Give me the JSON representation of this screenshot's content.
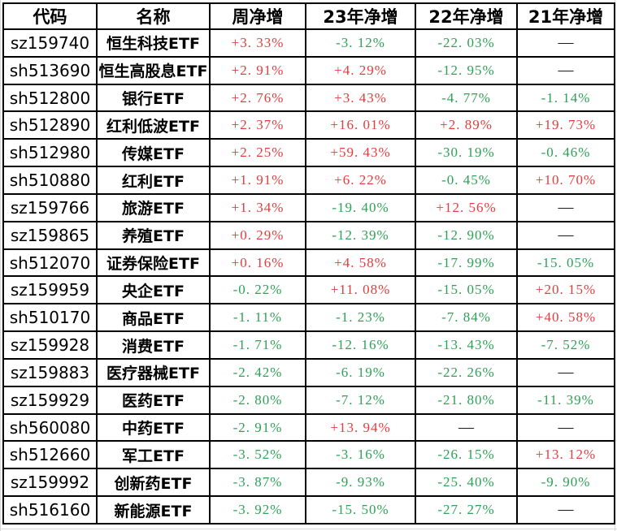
{
  "table": {
    "columns": [
      {
        "key": "code",
        "label": "代码",
        "kind": "text"
      },
      {
        "key": "name",
        "label": "名称",
        "kind": "text"
      },
      {
        "key": "week",
        "label": "周净增",
        "kind": "value"
      },
      {
        "key": "y23",
        "label": "23年净增",
        "kind": "value"
      },
      {
        "key": "y22",
        "label": "22年净增",
        "kind": "value"
      },
      {
        "key": "y21",
        "label": "21年净增",
        "kind": "value"
      }
    ],
    "rows": [
      {
        "code": "sz159740",
        "name": "恒生科技ETF",
        "week": "+3. 33%",
        "y23": "-3. 12%",
        "y22": "-22. 03%",
        "y21": "—"
      },
      {
        "code": "sh513690",
        "name": "恒生高股息ETF",
        "week": "+2. 91%",
        "y23": "+4. 29%",
        "y22": "-12. 95%",
        "y21": "—"
      },
      {
        "code": "sh512800",
        "name": "银行ETF",
        "week": "+2. 76%",
        "y23": "+3. 43%",
        "y22": "-4. 77%",
        "y21": "-1. 14%"
      },
      {
        "code": "sh512890",
        "name": "红利低波ETF",
        "week": "+2. 37%",
        "y23": "+16. 01%",
        "y22": "+2. 89%",
        "y21": "+19. 73%"
      },
      {
        "code": "sh512980",
        "name": "传媒ETF",
        "week": "+2. 25%",
        "y23": "+59. 43%",
        "y22": "-30. 19%",
        "y21": "-0. 46%"
      },
      {
        "code": "sh510880",
        "name": "红利ETF",
        "week": "+1. 91%",
        "y23": "+6. 22%",
        "y22": "-0. 45%",
        "y21": "+10. 70%"
      },
      {
        "code": "sz159766",
        "name": "旅游ETF",
        "week": "+1. 34%",
        "y23": "-19. 40%",
        "y22": "+12. 56%",
        "y21": "—"
      },
      {
        "code": "sz159865",
        "name": "养殖ETF",
        "week": "+0. 29%",
        "y23": "-12. 39%",
        "y22": "-12. 90%",
        "y21": "—"
      },
      {
        "code": "sh512070",
        "name": "证券保险ETF",
        "week": "+0. 16%",
        "y23": "+4. 58%",
        "y22": "-17. 99%",
        "y21": "-15. 05%"
      },
      {
        "code": "sz159959",
        "name": "央企ETF",
        "week": "-0. 22%",
        "y23": "+11. 08%",
        "y22": "-15. 05%",
        "y21": "+20. 15%"
      },
      {
        "code": "sh510170",
        "name": "商品ETF",
        "week": "-1. 11%",
        "y23": "-1. 23%",
        "y22": "-7. 84%",
        "y21": "+40. 58%"
      },
      {
        "code": "sz159928",
        "name": "消费ETF",
        "week": "-1. 71%",
        "y23": "-12. 16%",
        "y22": "-13. 43%",
        "y21": "-7. 52%"
      },
      {
        "code": "sz159883",
        "name": "医疗器械ETF",
        "week": "-2. 42%",
        "y23": "-6. 19%",
        "y22": "-22. 26%",
        "y21": "—"
      },
      {
        "code": "sz159929",
        "name": "医药ETF",
        "week": "-2. 80%",
        "y23": "-7. 12%",
        "y22": "-21. 80%",
        "y21": "-11. 39%"
      },
      {
        "code": "sh560080",
        "name": "中药ETF",
        "week": "-2. 91%",
        "y23": "+13. 94%",
        "y22": "—",
        "y21": "—"
      },
      {
        "code": "sh512660",
        "name": "军工ETF",
        "week": "-3. 52%",
        "y23": "-3. 16%",
        "y22": "-26. 15%",
        "y21": "+13. 12%"
      },
      {
        "code": "sz159992",
        "name": "创新药ETF",
        "week": "-3. 87%",
        "y23": "-9. 93%",
        "y22": "-25. 40%",
        "y21": "-9. 90%"
      },
      {
        "code": "sh516160",
        "name": "新能源ETF",
        "week": "-3. 92%",
        "y23": "-15. 50%",
        "y22": "-27. 27%",
        "y21": "—"
      }
    ]
  },
  "colors": {
    "positive_red": "#e03e3e",
    "negative_green": "#2fa058",
    "neutral_dash": "#1a1a1a",
    "grid_border": "#000000",
    "sheet_gridline": "#d9d9d9"
  }
}
